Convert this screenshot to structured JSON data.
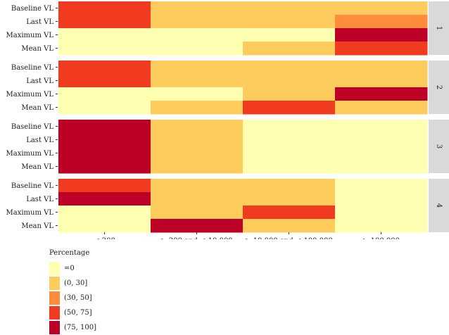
{
  "chart_data": {
    "type": "heatmap",
    "x_categories": [
      "≤ 200",
      "> 200 and ≤ 10,000",
      "> 10,000 and ≤ 100,000",
      "≥ 100,000"
    ],
    "y_categories": [
      "Baseline VL",
      "Last VL",
      "Maximum VL",
      "Mean VL"
    ],
    "facets": [
      {
        "label": "1",
        "grid": [
          [
            "(50, 75]",
            "(0, 30]",
            "(0, 30]",
            "(0, 30]"
          ],
          [
            "(50, 75]",
            "(0, 30]",
            "(0, 30]",
            "(30, 50]"
          ],
          [
            "=0",
            "=0",
            "=0",
            "(75, 100]"
          ],
          [
            "=0",
            "=0",
            "(0, 30]",
            "(50, 75]"
          ]
        ]
      },
      {
        "label": "2",
        "grid": [
          [
            "(50, 75]",
            "(0, 30]",
            "(0, 30]",
            "(0, 30]"
          ],
          [
            "(50, 75]",
            "(0, 30]",
            "(0, 30]",
            "(0, 30]"
          ],
          [
            "=0",
            "=0",
            "(0, 30]",
            "(75, 100]"
          ],
          [
            "=0",
            "(0, 30]",
            "(50, 75]",
            "(0, 30]"
          ]
        ]
      },
      {
        "label": "3",
        "grid": [
          [
            "(75, 100]",
            "(0, 30]",
            "=0",
            "=0"
          ],
          [
            "(75, 100]",
            "(0, 30]",
            "=0",
            "=0"
          ],
          [
            "(75, 100]",
            "(0, 30]",
            "=0",
            "=0"
          ],
          [
            "(75, 100]",
            "(0, 30]",
            "=0",
            "=0"
          ]
        ]
      },
      {
        "label": "4",
        "grid": [
          [
            "(50, 75]",
            "(0, 30]",
            "(0, 30]",
            "=0"
          ],
          [
            "(75, 100]",
            "(0, 30]",
            "(0, 30]",
            "=0"
          ],
          [
            "=0",
            "(0, 30]",
            "(50, 75]",
            "=0"
          ],
          [
            "=0",
            "(75, 100]",
            "(0, 30]",
            "=0"
          ]
        ]
      }
    ],
    "legend": {
      "title": "Percentage",
      "placement": "bottom-left",
      "entries": [
        {
          "label": "=0",
          "color": "#ffffb2"
        },
        {
          "label": "(0, 30]",
          "color": "#fecc5c"
        },
        {
          "label": "(30, 50]",
          "color": "#fd8d3c"
        },
        {
          "label": "(50, 75]",
          "color": "#f03b20"
        },
        {
          "label": "(75, 100]",
          "color": "#bd0026"
        }
      ]
    },
    "strip_color": "#d9d9d9",
    "grid": false
  }
}
